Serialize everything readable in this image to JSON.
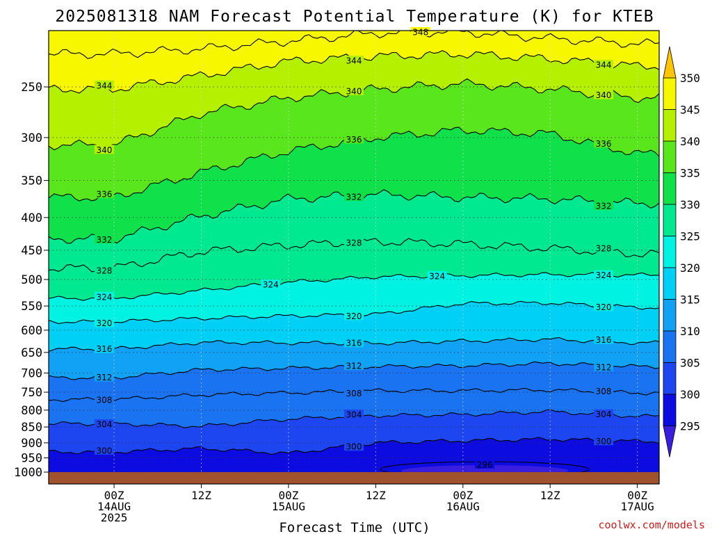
{
  "chart_data": {
    "type": "heatmap",
    "title": "2025081318 NAM Forecast Potential Temperature (K) for KTEB",
    "xlabel": "Forecast Time (UTC)",
    "ylabel": "",
    "credit": "coolwx.com/models",
    "y_scale": "log-pressure",
    "y_reversed": true,
    "y_range_hpa": [
      1000,
      200
    ],
    "y_ticks": [
      "250",
      "300",
      "350",
      "400",
      "450",
      "500",
      "550",
      "600",
      "650",
      "700",
      "750",
      "800",
      "850",
      "900",
      "950",
      "1000"
    ],
    "x_ticks": [
      {
        "lines": [
          "00Z",
          "14AUG",
          "2025"
        ]
      },
      {
        "lines": [
          "12Z"
        ]
      },
      {
        "lines": [
          "00Z",
          "15AUG"
        ]
      },
      {
        "lines": [
          "12Z"
        ]
      },
      {
        "lines": [
          "00Z",
          "16AUG"
        ]
      },
      {
        "lines": [
          "12Z"
        ]
      },
      {
        "lines": [
          "00Z",
          "17AUG"
        ]
      }
    ],
    "x_range_hours_from_init": [
      -3,
      81
    ],
    "x_tick_hours_from_init": [
      6,
      18,
      30,
      42,
      54,
      66,
      78
    ],
    "grid": true,
    "colorbar": {
      "labels": [
        "295",
        "300",
        "305",
        "310",
        "315",
        "320",
        "325",
        "330",
        "335",
        "340",
        "345",
        "350"
      ],
      "bins": [
        {
          "lo": 290,
          "hi": 295,
          "color": "#3a1ee0"
        },
        {
          "lo": 295,
          "hi": 300,
          "color": "#0c0ce0"
        },
        {
          "lo": 300,
          "hi": 305,
          "color": "#1e46f0"
        },
        {
          "lo": 305,
          "hi": 310,
          "color": "#1a73f0"
        },
        {
          "lo": 310,
          "hi": 315,
          "color": "#12a2f5"
        },
        {
          "lo": 315,
          "hi": 320,
          "color": "#00d0f6"
        },
        {
          "lo": 320,
          "hi": 325,
          "color": "#00f2e2"
        },
        {
          "lo": 325,
          "hi": 330,
          "color": "#00e890"
        },
        {
          "lo": 330,
          "hi": 335,
          "color": "#10e04a"
        },
        {
          "lo": 335,
          "hi": 340,
          "color": "#5ae61c"
        },
        {
          "lo": 340,
          "hi": 345,
          "color": "#b4f000"
        },
        {
          "lo": 345,
          "hi": 350,
          "color": "#f7f700"
        },
        {
          "lo": 350,
          "hi": 355,
          "color": "#ffc400"
        }
      ]
    },
    "ground_color": "#a0522d",
    "series": [
      {
        "value": 348,
        "label": "348",
        "pressure": [
          222,
          218,
          212,
          206,
          205,
          210,
          214
        ]
      },
      {
        "value": 344,
        "label": "344",
        "pressure": [
          252,
          240,
          228,
          224,
          222,
          226,
          232
        ]
      },
      {
        "value": 340,
        "label": "340",
        "pressure": [
          308,
          275,
          260,
          252,
          247,
          252,
          260
        ]
      },
      {
        "value": 336,
        "label": "336",
        "pressure": [
          372,
          340,
          315,
          300,
          292,
          296,
          318
        ]
      },
      {
        "value": 332,
        "label": "332",
        "pressure": [
          432,
          398,
          374,
          368,
          372,
          374,
          380
        ]
      },
      {
        "value": 328,
        "label": "328",
        "pressure": [
          480,
          452,
          442,
          436,
          440,
          447,
          456
        ]
      },
      {
        "value": 324,
        "label": "324",
        "pressure": [
          535,
          520,
          505,
          495,
          493,
          491,
          492
        ]
      },
      {
        "value": 320,
        "label": "320",
        "pressure": [
          582,
          575,
          570,
          567,
          545,
          544,
          553
        ]
      },
      {
        "value": 316,
        "label": "316",
        "pressure": [
          642,
          627,
          628,
          629,
          624,
          620,
          628
        ]
      },
      {
        "value": 312,
        "label": "312",
        "pressure": [
          712,
          692,
          688,
          684,
          682,
          676,
          684
        ]
      },
      {
        "value": 308,
        "label": "308",
        "pressure": [
          770,
          757,
          752,
          746,
          746,
          744,
          752
        ]
      },
      {
        "value": 304,
        "label": "304",
        "pressure": [
          840,
          848,
          826,
          816,
          813,
          804,
          818
        ]
      },
      {
        "value": 300,
        "label": "300",
        "pressure": [
          930,
          918,
          935,
          900,
          893,
          888,
          895
        ]
      },
      {
        "value": 296,
        "label": "296",
        "pressure": [
          null,
          null,
          null,
          null,
          968,
          960,
          null
        ]
      }
    ],
    "contour_label_values": [
      "348",
      "344",
      "344",
      "344",
      "340",
      "340",
      "340",
      "336",
      "336",
      "336",
      "332",
      "332",
      "332",
      "328",
      "328",
      "328",
      "324",
      "324",
      "324",
      "324",
      "320",
      "320",
      "320",
      "316",
      "316",
      "316",
      "312",
      "312",
      "312",
      "308",
      "308",
      "308",
      "304",
      "304",
      "304",
      "300",
      "300",
      "300",
      "296"
    ]
  }
}
